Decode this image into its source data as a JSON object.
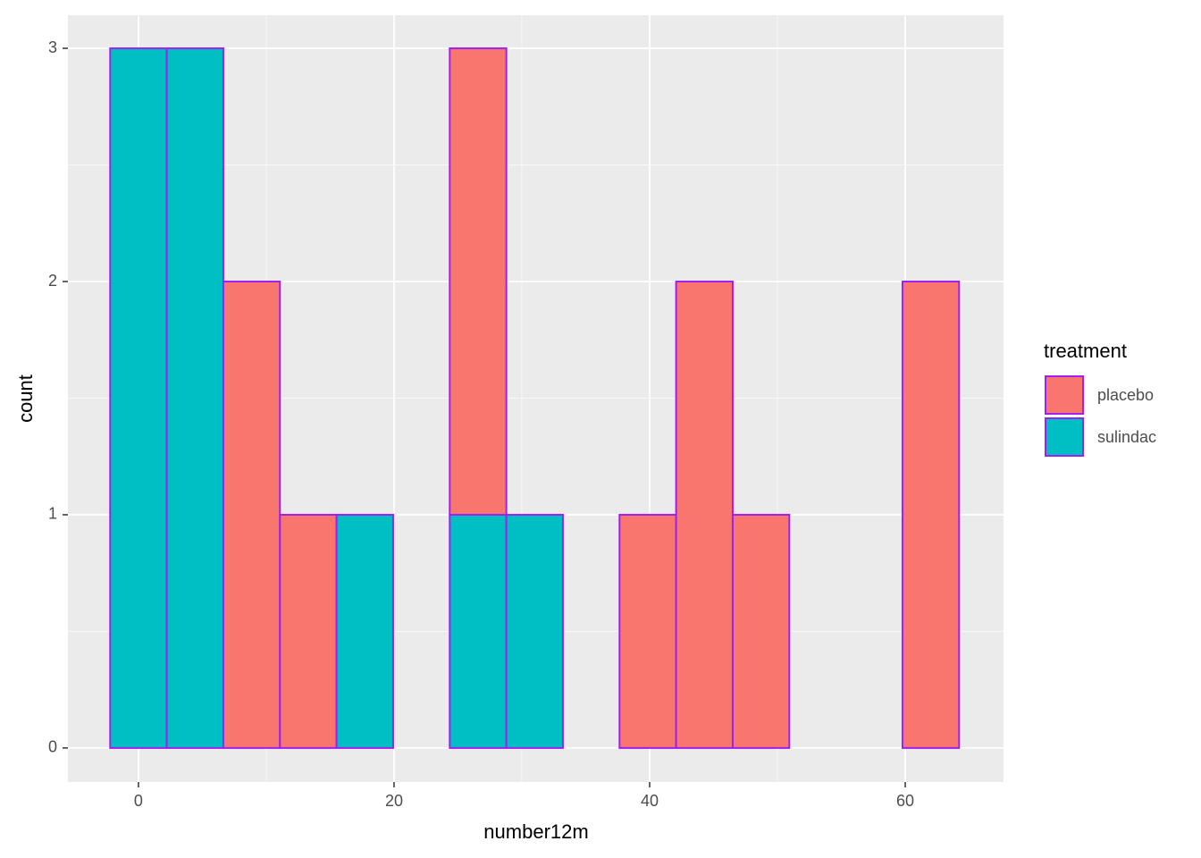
{
  "chart_data": {
    "type": "histogram",
    "x_label": "number12m",
    "y_label": "count",
    "legend_title": "treatment",
    "legend_position": "right",
    "bins": [
      -2.214,
      2.214,
      6.643,
      11.071,
      15.5,
      19.929,
      24.357,
      28.786,
      33.214,
      37.643,
      42.071,
      46.5,
      50.929,
      55.357,
      59.786,
      64.214
    ],
    "series": [
      {
        "name": "placebo",
        "color": "#f8766d",
        "values": [
          0,
          0,
          2,
          1,
          0,
          0,
          2,
          0,
          0,
          1,
          2,
          1,
          0,
          0,
          2
        ]
      },
      {
        "name": "sulindac",
        "color": "#00bfc4",
        "values": [
          3,
          3,
          0,
          0,
          1,
          0,
          1,
          1,
          0,
          0,
          0,
          0,
          0,
          0,
          0
        ]
      }
    ],
    "stacked": true,
    "edgecolor": "#a020f0",
    "xlim": [
      -5.52,
      67.69
    ],
    "xticks": [
      0,
      20,
      40,
      60
    ],
    "ylim": [
      -0.146,
      3.142
    ],
    "yticks": [
      0,
      1,
      2,
      3
    ],
    "grid": true
  }
}
